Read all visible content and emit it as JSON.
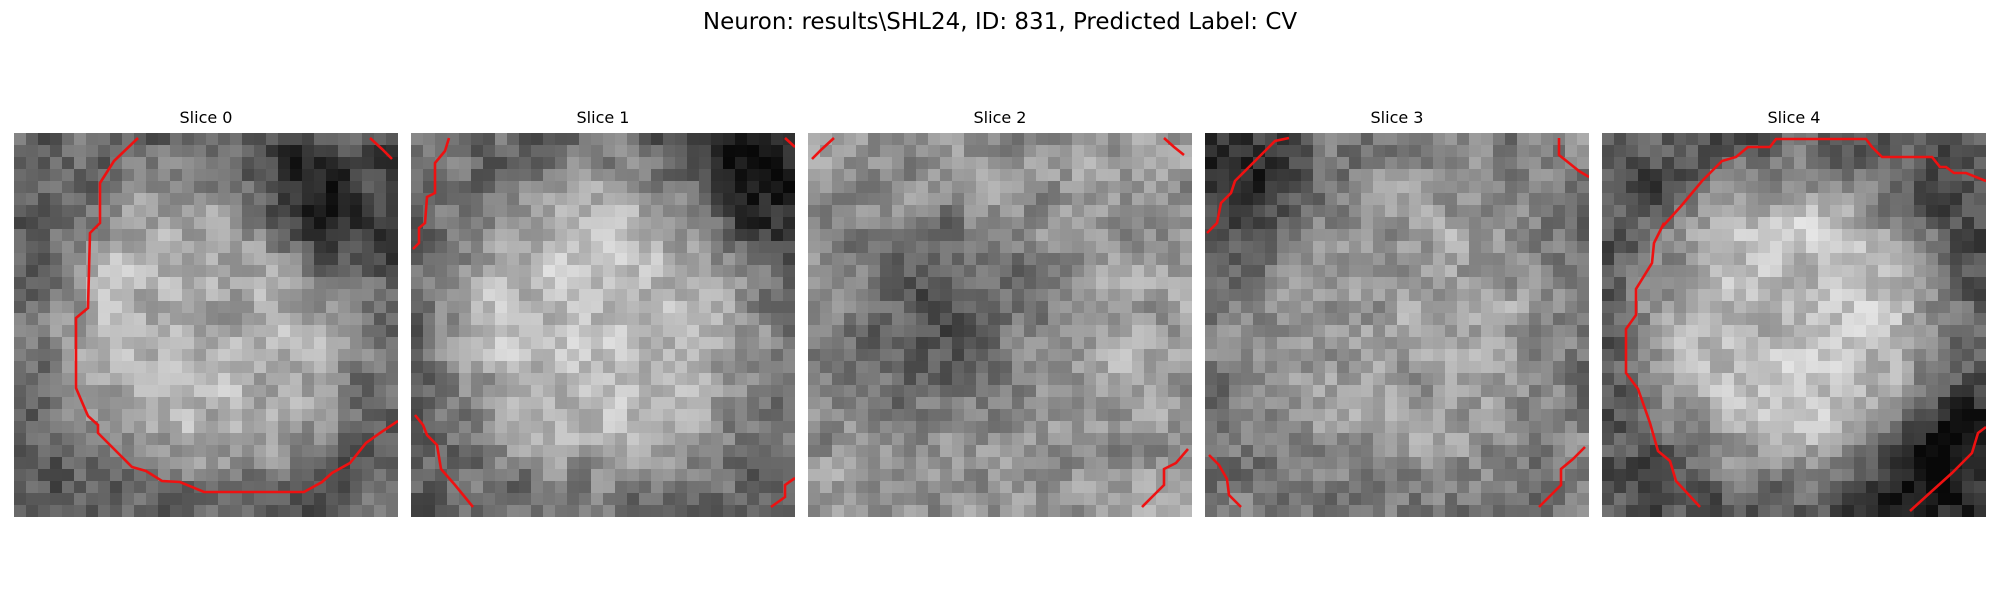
{
  "figure": {
    "title": "Neuron: results\\SHL24, ID: 831, Predicted Label: CV"
  },
  "colors": {
    "background": "#ffffff",
    "contour": "#ee1111",
    "image_colormap": "grayscale"
  },
  "slices": [
    {
      "title": "Slice 0",
      "seed": 11,
      "center_tone": 178,
      "edge_tone": 95,
      "dark_spot": "top-right-inner"
    },
    {
      "title": "Slice 1",
      "seed": 23,
      "center_tone": 185,
      "edge_tone": 105,
      "dark_spot": "top-right-corner"
    },
    {
      "title": "Slice 2",
      "seed": 37,
      "center_tone": 168,
      "edge_tone": 150,
      "dark_spot": "center"
    },
    {
      "title": "Slice 3",
      "seed": 41,
      "center_tone": 160,
      "edge_tone": 120,
      "dark_spot": "top-left"
    },
    {
      "title": "Slice 4",
      "seed": 53,
      "center_tone": 190,
      "edge_tone": 85,
      "dark_spot": "bottom-right"
    }
  ]
}
